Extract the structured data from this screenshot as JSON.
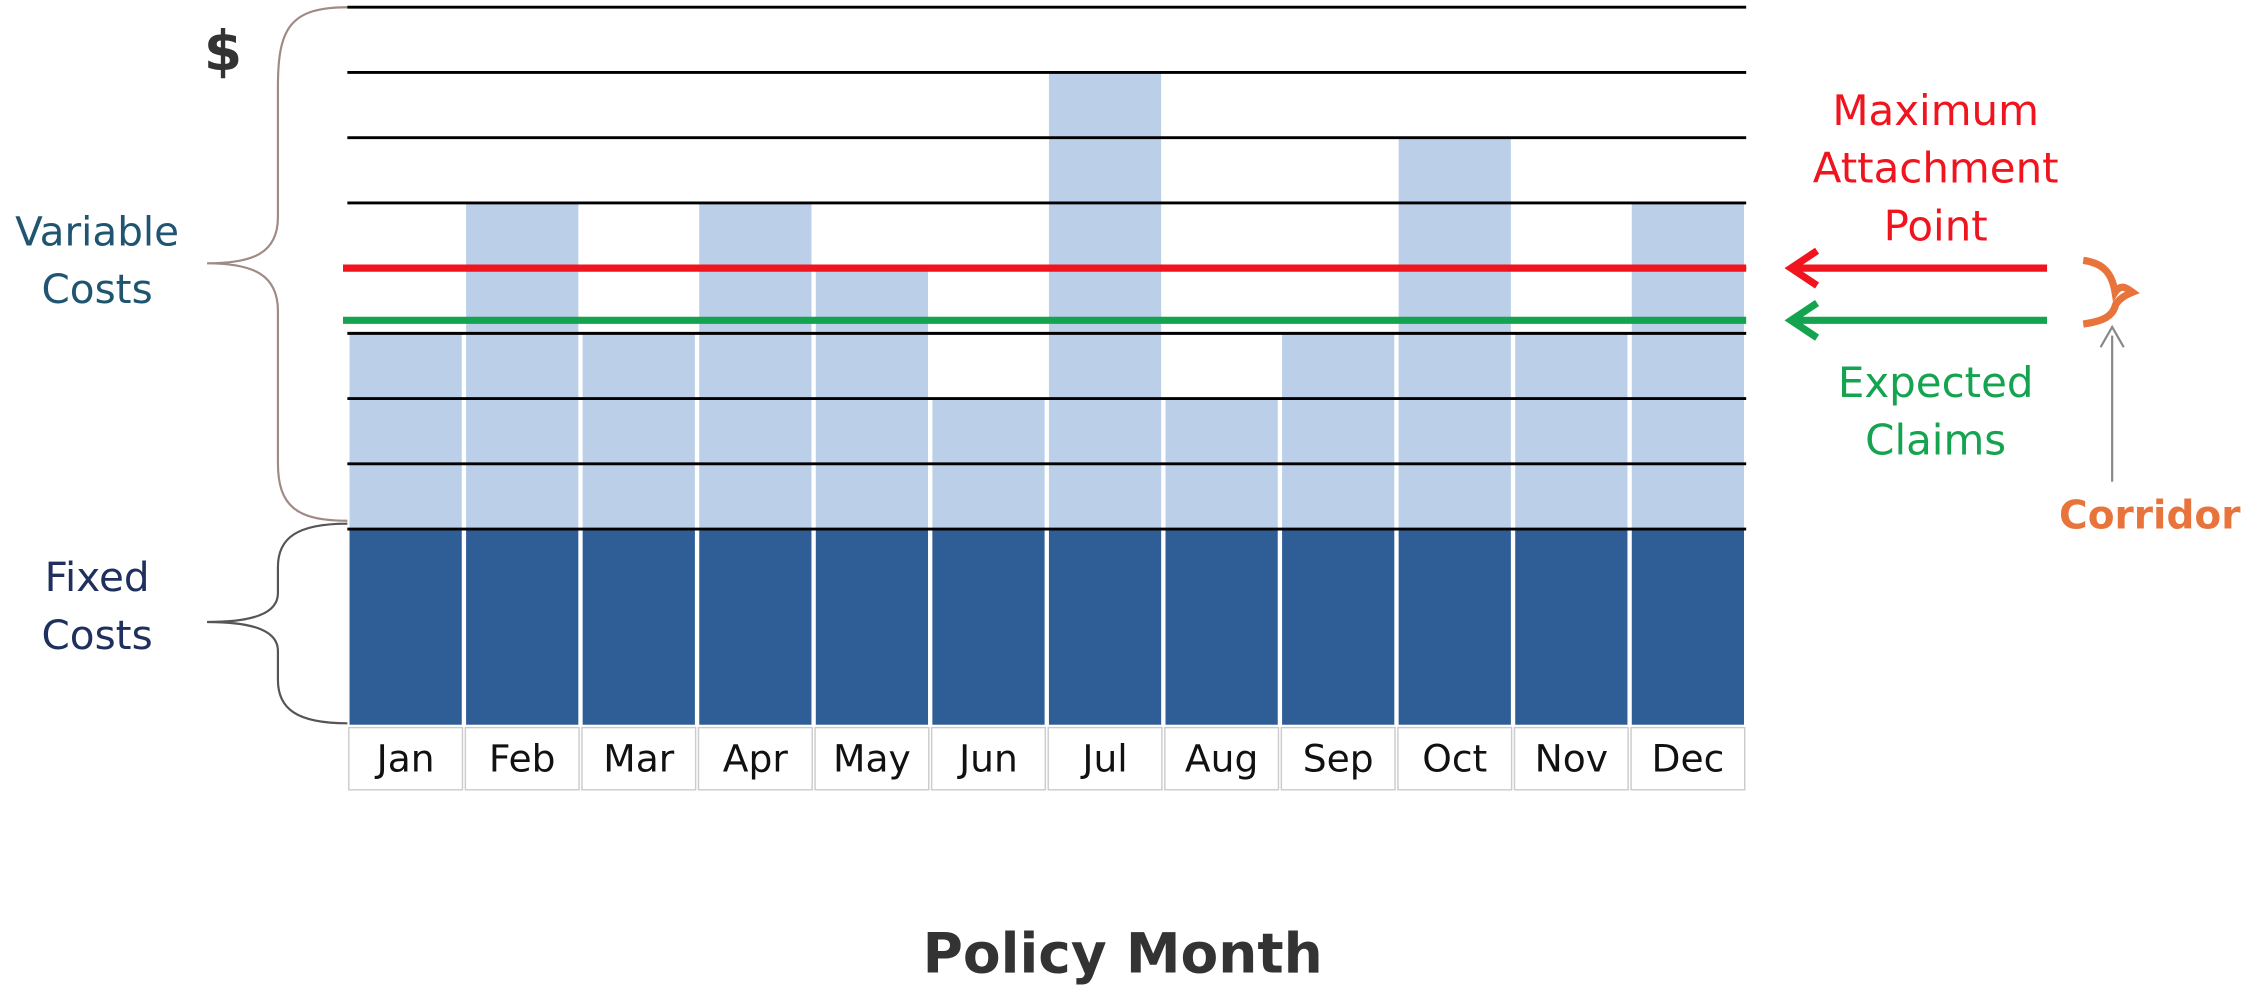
{
  "chart_data": {
    "type": "stacked-bar",
    "currency_label": "$",
    "x_label": "Policy Month",
    "categories": [
      "Jan",
      "Feb",
      "Mar",
      "Apr",
      "May",
      "Jun",
      "Jul",
      "Aug",
      "Sep",
      "Oct",
      "Nov",
      "Dec"
    ],
    "series": [
      {
        "name": "Fixed Costs",
        "color": "#2f5d95",
        "values": [
          3,
          3,
          3,
          3,
          3,
          3,
          3,
          3,
          3,
          3,
          3,
          3
        ]
      },
      {
        "name": "Variable Costs",
        "color": "#bccfe9",
        "values": [
          3,
          5,
          3,
          5,
          4,
          2,
          7,
          2,
          3,
          6,
          3,
          5
        ]
      }
    ],
    "ylim": [
      0,
      11
    ],
    "yticks": [
      3,
      4,
      5,
      6,
      7,
      8,
      9,
      10,
      11
    ],
    "grid": true,
    "reference_lines": [
      {
        "label": "Maximum Attachment Point",
        "value": 7,
        "color": "#f0141e"
      },
      {
        "label": "Expected Claims",
        "value": 6.2,
        "color": "#14a34f"
      }
    ],
    "annotation": "Corridor"
  }
}
